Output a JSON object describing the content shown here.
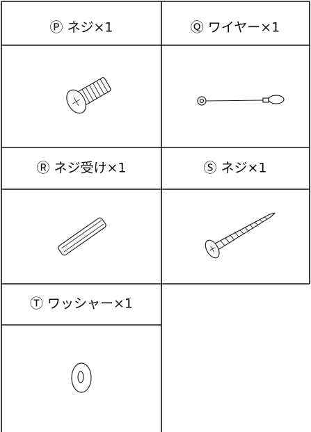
{
  "parts": [
    {
      "label": "Ⓟ ネジ×1"
    },
    {
      "label": "Ⓠ ワイヤー×1"
    },
    {
      "label": "Ⓡ ネジ受け×1"
    },
    {
      "label": "Ⓢ ネジ×1"
    },
    {
      "label": "Ⓣ ワッシャー×1"
    }
  ]
}
